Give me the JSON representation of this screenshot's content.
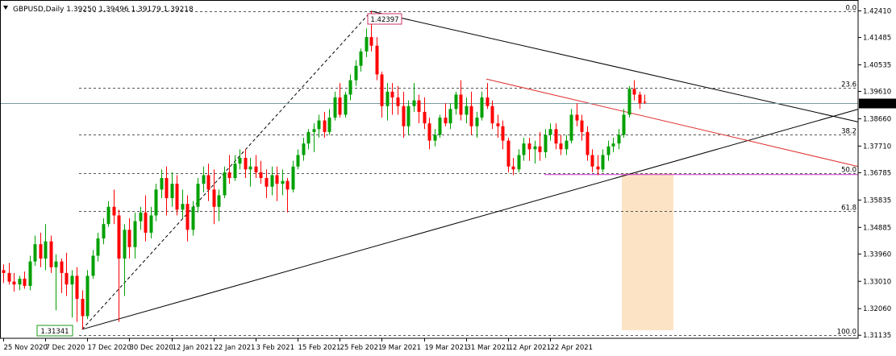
{
  "chart_data": {
    "type": "candlestick",
    "symbol_line": "GBPUSD,Daily  1.39250 1.39496 1.39179 1.39218",
    "price_axis": {
      "ticks": [
        "1.42410",
        "1.41485",
        "1.40535",
        "1.39610",
        "1.38660",
        "1.37710",
        "1.36785",
        "1.35835",
        "1.34885",
        "1.33960",
        "1.33010",
        "1.32060",
        "1.31135"
      ],
      "current_price": "1.39218",
      "range": [
        1.3103,
        1.4262
      ]
    },
    "date_axis": {
      "labels": [
        "25 Nov 2020",
        "7 Dec 2020",
        "17 Dec 2020",
        "30 Dec 2020",
        "12 Jan 2021",
        "22 Jan 2021",
        "3 Feb 2021",
        "15 Feb 2021",
        "25 Feb 2021",
        "9 Mar 2021",
        "19 Mar 2021",
        "31 Mar 2021",
        "12 Apr 2021",
        "22 Apr 2021"
      ],
      "label_bars": [
        0,
        8,
        16,
        24,
        32,
        40,
        48,
        56,
        64,
        72,
        80,
        88,
        96,
        104
      ]
    },
    "fibonacci": {
      "levels": [
        {
          "label": "0.0",
          "price": 1.424
        },
        {
          "label": "23.6",
          "price": 1.3974
        },
        {
          "label": "38.2",
          "price": 1.381
        },
        {
          "label": "50.0",
          "price": 1.3677
        },
        {
          "label": "61.8",
          "price": 1.3544
        },
        {
          "label": "100.0",
          "price": 1.3114
        }
      ],
      "anchor_labels": {
        "high": "1.42397",
        "low": "1.31341"
      }
    },
    "colors": {
      "bull": "#00a000",
      "bear": "#ff0000",
      "grid": "#555555",
      "fib_red": "#e03030",
      "magenta": "#cc33cc",
      "shade": "#fde3c6",
      "current_line": "#7a9aa3"
    },
    "candles": [
      [
        1.334,
        1.336,
        1.3295,
        1.333
      ],
      [
        1.333,
        1.3365,
        1.329,
        1.33
      ],
      [
        1.33,
        1.333,
        1.3265,
        1.329
      ],
      [
        1.329,
        1.332,
        1.327,
        1.331
      ],
      [
        1.331,
        1.3335,
        1.3275,
        1.3285
      ],
      [
        1.3285,
        1.339,
        1.327,
        1.337
      ],
      [
        1.337,
        1.346,
        1.3355,
        1.343
      ],
      [
        1.343,
        1.347,
        1.335,
        1.338
      ],
      [
        1.338,
        1.35,
        1.334,
        1.344
      ],
      [
        1.344,
        1.346,
        1.333,
        1.335
      ],
      [
        1.335,
        1.3395,
        1.32,
        1.337
      ],
      [
        1.337,
        1.338,
        1.326,
        1.333
      ],
      [
        1.333,
        1.34,
        1.325,
        1.329
      ],
      [
        1.329,
        1.334,
        1.3175,
        1.332
      ],
      [
        1.332,
        1.335,
        1.316,
        1.324
      ],
      [
        1.324,
        1.327,
        1.3134,
        1.318
      ],
      [
        1.318,
        1.334,
        1.317,
        1.332
      ],
      [
        1.332,
        1.341,
        1.331,
        1.339
      ],
      [
        1.339,
        1.347,
        1.337,
        1.345
      ],
      [
        1.345,
        1.352,
        1.343,
        1.35
      ],
      [
        1.35,
        1.358,
        1.349,
        1.356
      ],
      [
        1.356,
        1.362,
        1.35,
        1.353
      ],
      [
        1.353,
        1.355,
        1.316,
        1.338
      ],
      [
        1.338,
        1.35,
        1.325,
        1.348
      ],
      [
        1.348,
        1.352,
        1.338,
        1.342
      ],
      [
        1.342,
        1.354,
        1.338,
        1.351
      ],
      [
        1.351,
        1.356,
        1.348,
        1.354
      ],
      [
        1.354,
        1.36,
        1.344,
        1.347
      ],
      [
        1.347,
        1.356,
        1.345,
        1.353
      ],
      [
        1.353,
        1.364,
        1.351,
        1.362
      ],
      [
        1.362,
        1.369,
        1.359,
        1.366
      ],
      [
        1.366,
        1.37,
        1.353,
        1.359
      ],
      [
        1.359,
        1.368,
        1.356,
        1.364
      ],
      [
        1.364,
        1.367,
        1.353,
        1.355
      ],
      [
        1.355,
        1.362,
        1.352,
        1.357
      ],
      [
        1.357,
        1.36,
        1.344,
        1.348
      ],
      [
        1.348,
        1.358,
        1.346,
        1.356
      ],
      [
        1.356,
        1.366,
        1.354,
        1.364
      ],
      [
        1.364,
        1.37,
        1.361,
        1.367
      ],
      [
        1.367,
        1.371,
        1.358,
        1.362
      ],
      [
        1.362,
        1.369,
        1.35,
        1.356
      ],
      [
        1.356,
        1.362,
        1.351,
        1.36
      ],
      [
        1.36,
        1.37,
        1.359,
        1.368
      ],
      [
        1.368,
        1.374,
        1.364,
        1.366
      ],
      [
        1.366,
        1.374,
        1.365,
        1.371
      ],
      [
        1.371,
        1.376,
        1.369,
        1.373
      ],
      [
        1.373,
        1.376,
        1.366,
        1.369
      ],
      [
        1.369,
        1.373,
        1.363,
        1.37
      ],
      [
        1.37,
        1.374,
        1.366,
        1.368
      ],
      [
        1.368,
        1.372,
        1.364,
        1.366
      ],
      [
        1.366,
        1.369,
        1.359,
        1.363
      ],
      [
        1.363,
        1.37,
        1.36,
        1.367
      ],
      [
        1.367,
        1.37,
        1.358,
        1.364
      ],
      [
        1.364,
        1.369,
        1.36,
        1.365
      ],
      [
        1.365,
        1.366,
        1.354,
        1.362
      ],
      [
        1.362,
        1.372,
        1.361,
        1.37
      ],
      [
        1.37,
        1.376,
        1.369,
        1.374
      ],
      [
        1.374,
        1.38,
        1.372,
        1.378
      ],
      [
        1.378,
        1.383,
        1.376,
        1.382
      ],
      [
        1.382,
        1.385,
        1.375,
        1.383
      ],
      [
        1.383,
        1.388,
        1.38,
        1.386
      ],
      [
        1.386,
        1.389,
        1.38,
        1.382
      ],
      [
        1.382,
        1.39,
        1.381,
        1.387
      ],
      [
        1.387,
        1.396,
        1.386,
        1.394
      ],
      [
        1.394,
        1.399,
        1.387,
        1.388
      ],
      [
        1.388,
        1.396,
        1.387,
        1.395
      ],
      [
        1.395,
        1.402,
        1.393,
        1.4
      ],
      [
        1.4,
        1.407,
        1.398,
        1.405
      ],
      [
        1.405,
        1.411,
        1.403,
        1.41
      ],
      [
        1.41,
        1.418,
        1.408,
        1.415
      ],
      [
        1.415,
        1.424,
        1.41,
        1.412
      ],
      [
        1.412,
        1.415,
        1.4,
        1.402
      ],
      [
        1.402,
        1.403,
        1.387,
        1.391
      ],
      [
        1.391,
        1.399,
        1.386,
        1.396
      ],
      [
        1.396,
        1.399,
        1.388,
        1.394
      ],
      [
        1.394,
        1.398,
        1.388,
        1.391
      ],
      [
        1.391,
        1.396,
        1.38,
        1.384
      ],
      [
        1.384,
        1.393,
        1.381,
        1.391
      ],
      [
        1.391,
        1.399,
        1.389,
        1.393
      ],
      [
        1.393,
        1.395,
        1.385,
        1.389
      ],
      [
        1.389,
        1.394,
        1.383,
        1.385
      ],
      [
        1.385,
        1.387,
        1.376,
        1.379
      ],
      [
        1.379,
        1.383,
        1.377,
        1.381
      ],
      [
        1.381,
        1.388,
        1.38,
        1.387
      ],
      [
        1.387,
        1.392,
        1.384,
        1.385
      ],
      [
        1.385,
        1.392,
        1.383,
        1.39
      ],
      [
        1.39,
        1.396,
        1.388,
        1.395
      ],
      [
        1.395,
        1.4,
        1.386,
        1.388
      ],
      [
        1.388,
        1.394,
        1.385,
        1.391
      ],
      [
        1.391,
        1.396,
        1.381,
        1.384
      ],
      [
        1.384,
        1.389,
        1.38,
        1.387
      ],
      [
        1.387,
        1.396,
        1.386,
        1.394
      ],
      [
        1.394,
        1.399,
        1.39,
        1.391
      ],
      [
        1.391,
        1.393,
        1.383,
        1.385
      ],
      [
        1.385,
        1.388,
        1.38,
        1.384
      ],
      [
        1.384,
        1.386,
        1.376,
        1.379
      ],
      [
        1.379,
        1.38,
        1.368,
        1.37
      ],
      [
        1.37,
        1.373,
        1.367,
        1.369
      ],
      [
        1.369,
        1.376,
        1.368,
        1.374
      ],
      [
        1.374,
        1.38,
        1.372,
        1.378
      ],
      [
        1.378,
        1.38,
        1.372,
        1.376
      ],
      [
        1.376,
        1.379,
        1.371,
        1.377
      ],
      [
        1.377,
        1.382,
        1.372,
        1.375
      ],
      [
        1.375,
        1.383,
        1.373,
        1.381
      ],
      [
        1.381,
        1.385,
        1.379,
        1.383
      ],
      [
        1.383,
        1.385,
        1.376,
        1.378
      ],
      [
        1.378,
        1.381,
        1.374,
        1.376
      ],
      [
        1.376,
        1.381,
        1.374,
        1.379
      ],
      [
        1.379,
        1.39,
        1.378,
        1.388
      ],
      [
        1.388,
        1.392,
        1.384,
        1.386
      ],
      [
        1.386,
        1.388,
        1.379,
        1.382
      ],
      [
        1.382,
        1.384,
        1.372,
        1.374
      ],
      [
        1.374,
        1.376,
        1.368,
        1.37
      ],
      [
        1.37,
        1.374,
        1.367,
        1.369
      ],
      [
        1.369,
        1.376,
        1.368,
        1.374
      ],
      [
        1.374,
        1.379,
        1.372,
        1.377
      ],
      [
        1.377,
        1.38,
        1.375,
        1.378
      ],
      [
        1.378,
        1.383,
        1.376,
        1.381
      ],
      [
        1.381,
        1.39,
        1.38,
        1.388
      ],
      [
        1.388,
        1.398,
        1.387,
        1.397
      ],
      [
        1.397,
        1.4,
        1.393,
        1.395
      ],
      [
        1.395,
        1.396,
        1.39,
        1.392
      ],
      [
        1.3925,
        1.395,
        1.3918,
        1.3922
      ]
    ]
  }
}
